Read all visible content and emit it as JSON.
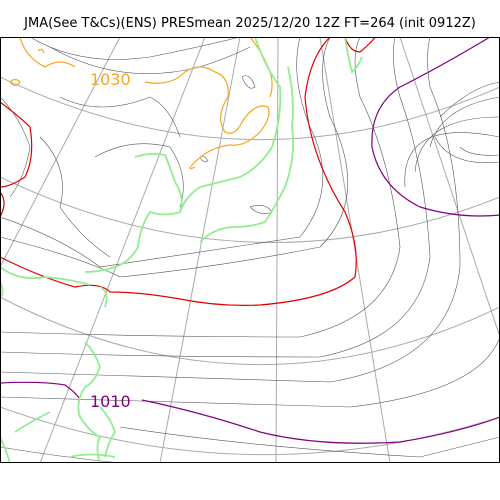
{
  "title": "JMA(See T&Cs)(ENS) PRESmean 2025/12/20 12Z FT=264 (init 0912Z)",
  "labels": [
    {
      "text": "1030",
      "color": "#f5a623"
    },
    {
      "text": "1010",
      "color": "#800080"
    }
  ],
  "colors": {
    "isobar_thin": "#555555",
    "isobar_1030": "#f5a623",
    "isobar_1020": "#e00000",
    "isobar_1010": "#800080",
    "coastline": "#90ee90",
    "graticule": "#aaaaaa",
    "frame": "#000000"
  }
}
